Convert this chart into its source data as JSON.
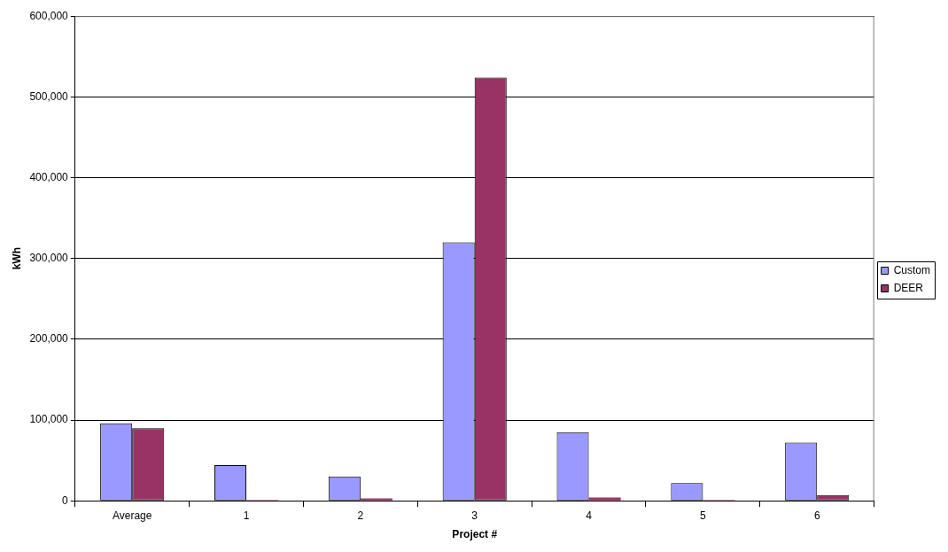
{
  "chart_data": {
    "type": "bar",
    "xlabel": "Project #",
    "ylabel": "kWh",
    "categories": [
      "Average",
      "1",
      "2",
      "3",
      "4",
      "5",
      "6"
    ],
    "series": [
      {
        "name": "Custom",
        "color": "#9999ff",
        "values": [
          96000,
          44000,
          30000,
          320000,
          85000,
          22000,
          72000
        ]
      },
      {
        "name": "DEER",
        "color": "#993366",
        "values": [
          90000,
          1000,
          3000,
          524000,
          4000,
          1000,
          7000
        ]
      }
    ],
    "ylim": [
      0,
      600000
    ],
    "yticks": [
      {
        "value": 0,
        "label": "0"
      },
      {
        "value": 100000,
        "label": "100,000"
      },
      {
        "value": 200000,
        "label": "200,000"
      },
      {
        "value": 300000,
        "label": "300,000"
      },
      {
        "value": 400000,
        "label": "400,000"
      },
      {
        "value": 500000,
        "label": "500,000"
      },
      {
        "value": 600000,
        "label": "600,000"
      }
    ],
    "grid": "y",
    "legend": "right"
  }
}
